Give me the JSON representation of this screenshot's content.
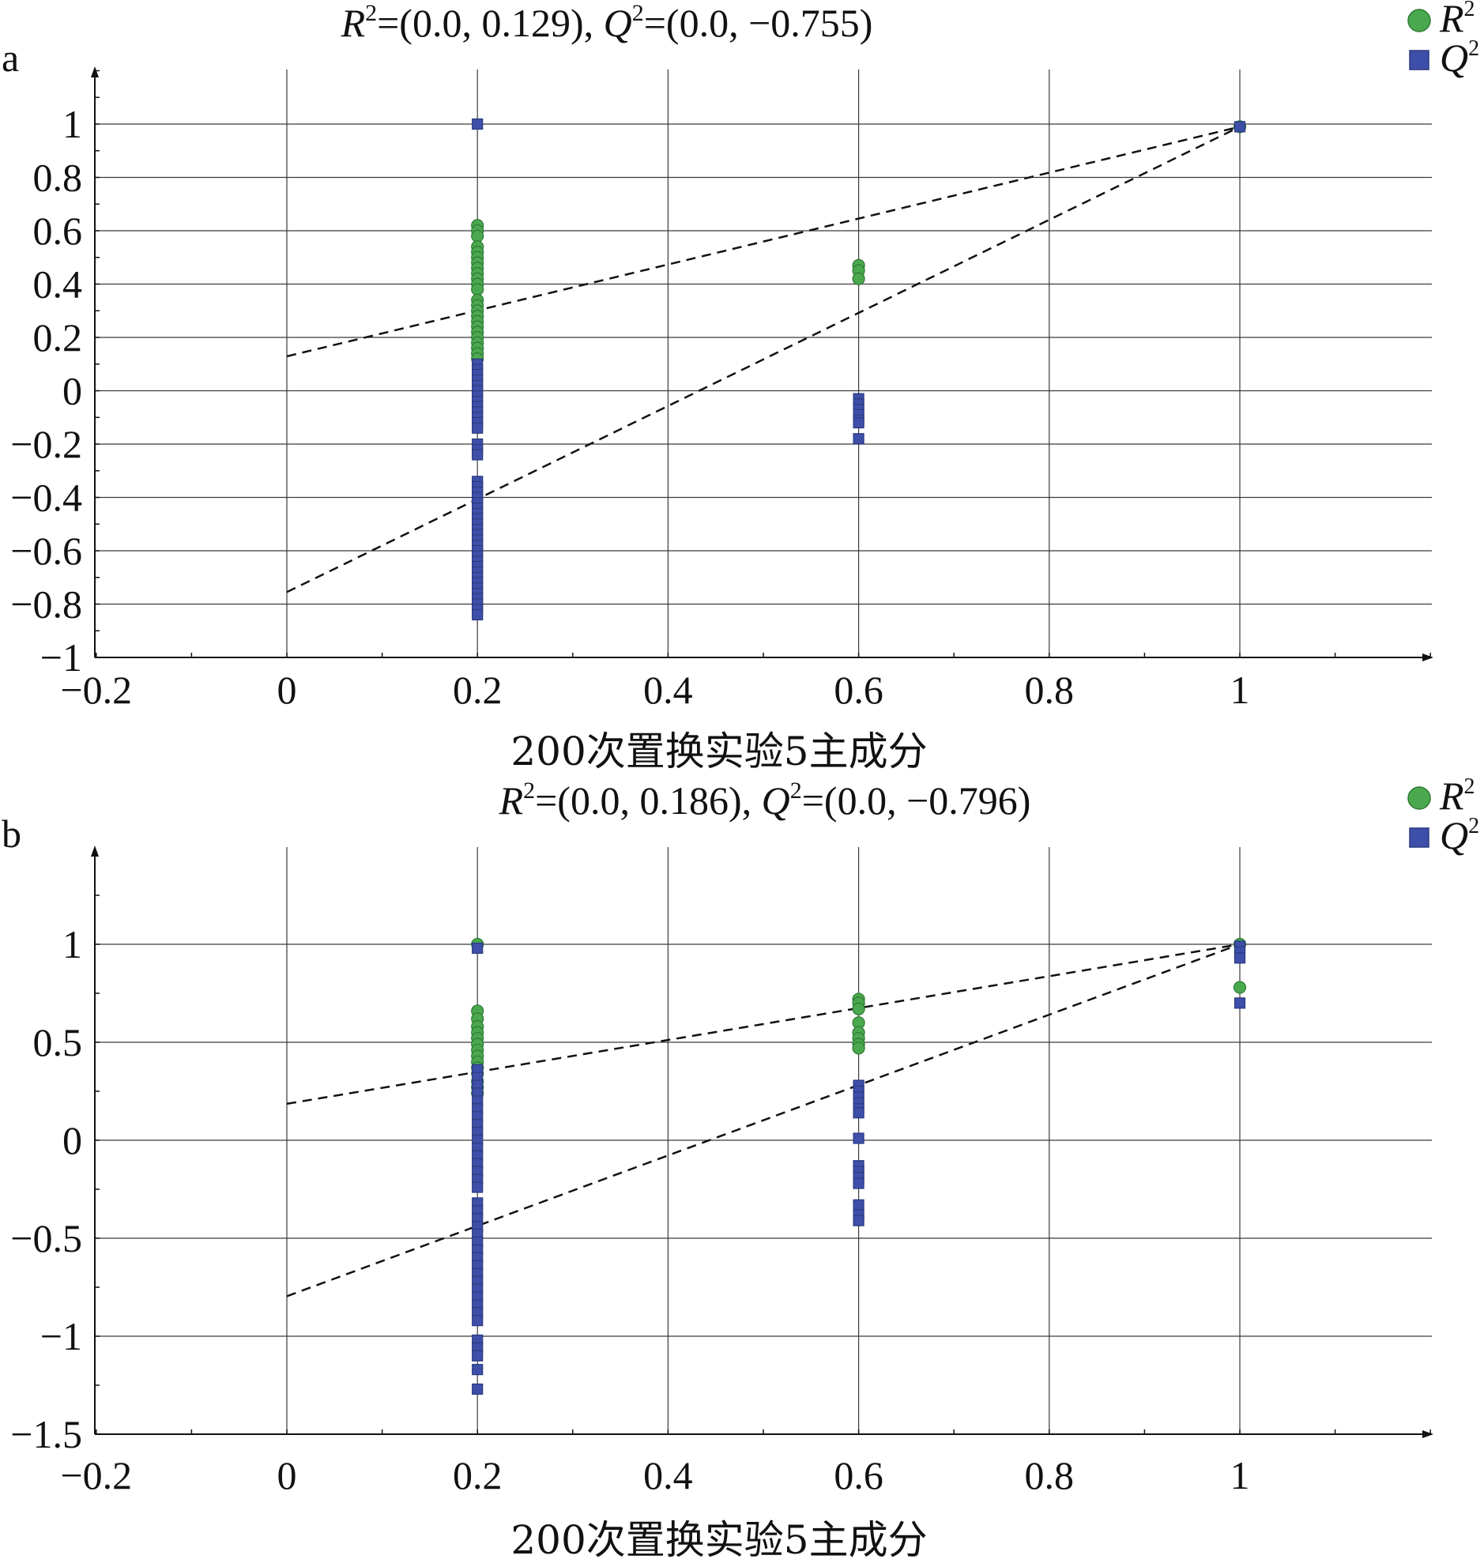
{
  "chart_data": [
    {
      "type": "scatter",
      "panel_label": "a",
      "title": {
        "r_label": "R",
        "r_text": "=(0.0, 0.129), ",
        "q_label": "Q",
        "q_text": "=(0.0, −0.755)"
      },
      "xlabel": "200次置换实验5主成分",
      "ylabel": "",
      "xlim": [
        -0.2,
        1.2
      ],
      "ylim": [
        -1,
        1.2
      ],
      "x_ticks": [
        -0.2,
        0,
        0.2,
        0.4,
        0.6,
        0.8,
        1
      ],
      "x_tick_labels": [
        "−0.2",
        "0",
        "0.2",
        "0.4",
        "0.6",
        "0.8",
        "1"
      ],
      "y_ticks": [
        -1,
        -0.8,
        -0.6,
        -0.4,
        -0.2,
        0,
        0.2,
        0.4,
        0.6,
        0.8,
        1
      ],
      "y_tick_labels": [
        "−1",
        "−0.8",
        "−0.6",
        "−0.4",
        "−0.2",
        "0",
        "0.2",
        "0.4",
        "0.6",
        "0.8",
        "1"
      ],
      "grid": true,
      "legend": {
        "position": "top-right",
        "entries": [
          {
            "label": "R",
            "sup": "2",
            "marker": "circle",
            "color": "#4aa84f"
          },
          {
            "label": "Q",
            "sup": "2",
            "marker": "square",
            "color": "#3d4fa8"
          }
        ]
      },
      "series": [
        {
          "name": "R2",
          "marker": "circle",
          "color": "#4aa84f",
          "points": [
            [
              0.2,
              0.62
            ],
            [
              0.2,
              0.6
            ],
            [
              0.2,
              0.58
            ],
            [
              0.2,
              0.54
            ],
            [
              0.2,
              0.52
            ],
            [
              0.2,
              0.5
            ],
            [
              0.2,
              0.48
            ],
            [
              0.2,
              0.46
            ],
            [
              0.2,
              0.44
            ],
            [
              0.2,
              0.42
            ],
            [
              0.2,
              0.4
            ],
            [
              0.2,
              0.38
            ],
            [
              0.2,
              0.34
            ],
            [
              0.2,
              0.32
            ],
            [
              0.2,
              0.3
            ],
            [
              0.2,
              0.28
            ],
            [
              0.2,
              0.26
            ],
            [
              0.2,
              0.24
            ],
            [
              0.2,
              0.22
            ],
            [
              0.2,
              0.2
            ],
            [
              0.2,
              0.18
            ],
            [
              0.2,
              0.16
            ],
            [
              0.2,
              0.14
            ],
            [
              0.2,
              0.12
            ],
            [
              0.6,
              0.47
            ],
            [
              0.6,
              0.45
            ],
            [
              0.6,
              0.42
            ],
            [
              1,
              0.99
            ]
          ]
        },
        {
          "name": "Q2",
          "marker": "square",
          "color": "#3d4fa8",
          "points": [
            [
              0.2,
              1.0
            ],
            [
              0.2,
              0.1
            ],
            [
              0.2,
              0.08
            ],
            [
              0.2,
              0.06
            ],
            [
              0.2,
              0.04
            ],
            [
              0.2,
              0.02
            ],
            [
              0.2,
              0.0
            ],
            [
              0.2,
              -0.02
            ],
            [
              0.2,
              -0.04
            ],
            [
              0.2,
              -0.06
            ],
            [
              0.2,
              -0.08
            ],
            [
              0.2,
              -0.1
            ],
            [
              0.2,
              -0.12
            ],
            [
              0.2,
              -0.14
            ],
            [
              0.2,
              -0.2
            ],
            [
              0.2,
              -0.22
            ],
            [
              0.2,
              -0.24
            ],
            [
              0.2,
              -0.34
            ],
            [
              0.2,
              -0.36
            ],
            [
              0.2,
              -0.38
            ],
            [
              0.2,
              -0.4
            ],
            [
              0.2,
              -0.42
            ],
            [
              0.2,
              -0.44
            ],
            [
              0.2,
              -0.46
            ],
            [
              0.2,
              -0.48
            ],
            [
              0.2,
              -0.5
            ],
            [
              0.2,
              -0.52
            ],
            [
              0.2,
              -0.54
            ],
            [
              0.2,
              -0.56
            ],
            [
              0.2,
              -0.58
            ],
            [
              0.2,
              -0.6
            ],
            [
              0.2,
              -0.62
            ],
            [
              0.2,
              -0.64
            ],
            [
              0.2,
              -0.66
            ],
            [
              0.2,
              -0.68
            ],
            [
              0.2,
              -0.7
            ],
            [
              0.2,
              -0.72
            ],
            [
              0.2,
              -0.74
            ],
            [
              0.2,
              -0.76
            ],
            [
              0.2,
              -0.78
            ],
            [
              0.2,
              -0.8
            ],
            [
              0.2,
              -0.82
            ],
            [
              0.2,
              -0.84
            ],
            [
              0.6,
              -0.03
            ],
            [
              0.6,
              -0.05
            ],
            [
              0.6,
              -0.07
            ],
            [
              0.6,
              -0.09
            ],
            [
              0.6,
              -0.11
            ],
            [
              0.6,
              -0.12
            ],
            [
              0.6,
              -0.18
            ],
            [
              1,
              0.99
            ]
          ]
        }
      ],
      "regression_lines": [
        {
          "series": "R2",
          "from": [
            0,
            0.129
          ],
          "to": [
            1,
            0.99
          ]
        },
        {
          "series": "Q2",
          "from": [
            0,
            -0.755
          ],
          "to": [
            1,
            0.99
          ]
        }
      ]
    },
    {
      "type": "scatter",
      "panel_label": "b",
      "title": {
        "r_label": "R",
        "r_text": "=(0.0, 0.186), ",
        "q_label": "Q",
        "q_text": "=(0.0, −0.796)"
      },
      "xlabel": "200次置换实验5主成分",
      "ylabel": "",
      "xlim": [
        -0.2,
        1.2
      ],
      "ylim": [
        -1.5,
        1.5
      ],
      "x_ticks": [
        -0.2,
        0,
        0.2,
        0.4,
        0.6,
        0.8,
        1
      ],
      "x_tick_labels": [
        "−0.2",
        "0",
        "0.2",
        "0.4",
        "0.6",
        "0.8",
        "1"
      ],
      "y_ticks": [
        -1.5,
        -1,
        -0.5,
        0,
        0.5,
        1
      ],
      "y_tick_labels": [
        "−1.5",
        "−1",
        "−0.5",
        "0",
        "0.5",
        "1"
      ],
      "grid": true,
      "legend": {
        "position": "top-right",
        "entries": [
          {
            "label": "R",
            "sup": "2",
            "marker": "circle",
            "color": "#4aa84f"
          },
          {
            "label": "Q",
            "sup": "2",
            "marker": "square",
            "color": "#3d4fa8"
          }
        ]
      },
      "series": [
        {
          "name": "R2",
          "marker": "circle",
          "color": "#4aa84f",
          "points": [
            [
              0.2,
              1.0
            ],
            [
              0.2,
              0.66
            ],
            [
              0.2,
              0.62
            ],
            [
              0.2,
              0.58
            ],
            [
              0.2,
              0.55
            ],
            [
              0.2,
              0.52
            ],
            [
              0.2,
              0.49
            ],
            [
              0.2,
              0.46
            ],
            [
              0.2,
              0.43
            ],
            [
              0.2,
              0.4
            ],
            [
              0.2,
              0.37
            ],
            [
              0.2,
              0.34
            ],
            [
              0.2,
              0.3
            ],
            [
              0.2,
              0.27
            ],
            [
              0.2,
              0.24
            ],
            [
              0.6,
              0.72
            ],
            [
              0.6,
              0.7
            ],
            [
              0.6,
              0.67
            ],
            [
              0.6,
              0.6
            ],
            [
              0.6,
              0.55
            ],
            [
              0.6,
              0.52
            ],
            [
              0.6,
              0.49
            ],
            [
              0.6,
              0.47
            ],
            [
              1,
              1.0
            ],
            [
              1,
              0.78
            ]
          ]
        },
        {
          "name": "Q2",
          "marker": "square",
          "color": "#3d4fa8",
          "points": [
            [
              0.2,
              0.98
            ],
            [
              0.2,
              0.36
            ],
            [
              0.2,
              0.32
            ],
            [
              0.2,
              0.28
            ],
            [
              0.2,
              0.24
            ],
            [
              0.2,
              0.2
            ],
            [
              0.2,
              0.16
            ],
            [
              0.2,
              0.12
            ],
            [
              0.2,
              0.08
            ],
            [
              0.2,
              0.04
            ],
            [
              0.2,
              0.0
            ],
            [
              0.2,
              -0.04
            ],
            [
              0.2,
              -0.08
            ],
            [
              0.2,
              -0.12
            ],
            [
              0.2,
              -0.16
            ],
            [
              0.2,
              -0.2
            ],
            [
              0.2,
              -0.24
            ],
            [
              0.2,
              -0.32
            ],
            [
              0.2,
              -0.36
            ],
            [
              0.2,
              -0.4
            ],
            [
              0.2,
              -0.44
            ],
            [
              0.2,
              -0.48
            ],
            [
              0.2,
              -0.52
            ],
            [
              0.2,
              -0.56
            ],
            [
              0.2,
              -0.6
            ],
            [
              0.2,
              -0.64
            ],
            [
              0.2,
              -0.68
            ],
            [
              0.2,
              -0.72
            ],
            [
              0.2,
              -0.76
            ],
            [
              0.2,
              -0.8
            ],
            [
              0.2,
              -0.84
            ],
            [
              0.2,
              -0.88
            ],
            [
              0.2,
              -0.92
            ],
            [
              0.2,
              -1.02
            ],
            [
              0.2,
              -1.06
            ],
            [
              0.2,
              -1.1
            ],
            [
              0.2,
              -1.17
            ],
            [
              0.2,
              -1.27
            ],
            [
              0.6,
              0.28
            ],
            [
              0.6,
              0.25
            ],
            [
              0.6,
              0.22
            ],
            [
              0.6,
              0.19
            ],
            [
              0.6,
              0.16
            ],
            [
              0.6,
              0.14
            ],
            [
              0.6,
              0.01
            ],
            [
              0.6,
              -0.13
            ],
            [
              0.6,
              -0.16
            ],
            [
              0.6,
              -0.19
            ],
            [
              0.6,
              -0.22
            ],
            [
              0.6,
              -0.33
            ],
            [
              0.6,
              -0.38
            ],
            [
              0.6,
              -0.41
            ],
            [
              1,
              0.99
            ],
            [
              1,
              0.96
            ],
            [
              1,
              0.93
            ],
            [
              1,
              0.7
            ]
          ]
        }
      ],
      "regression_lines": [
        {
          "series": "R2",
          "from": [
            0,
            0.186
          ],
          "to": [
            1,
            1.0
          ]
        },
        {
          "series": "Q2",
          "from": [
            0,
            -0.796
          ],
          "to": [
            1,
            1.0
          ]
        }
      ]
    }
  ]
}
